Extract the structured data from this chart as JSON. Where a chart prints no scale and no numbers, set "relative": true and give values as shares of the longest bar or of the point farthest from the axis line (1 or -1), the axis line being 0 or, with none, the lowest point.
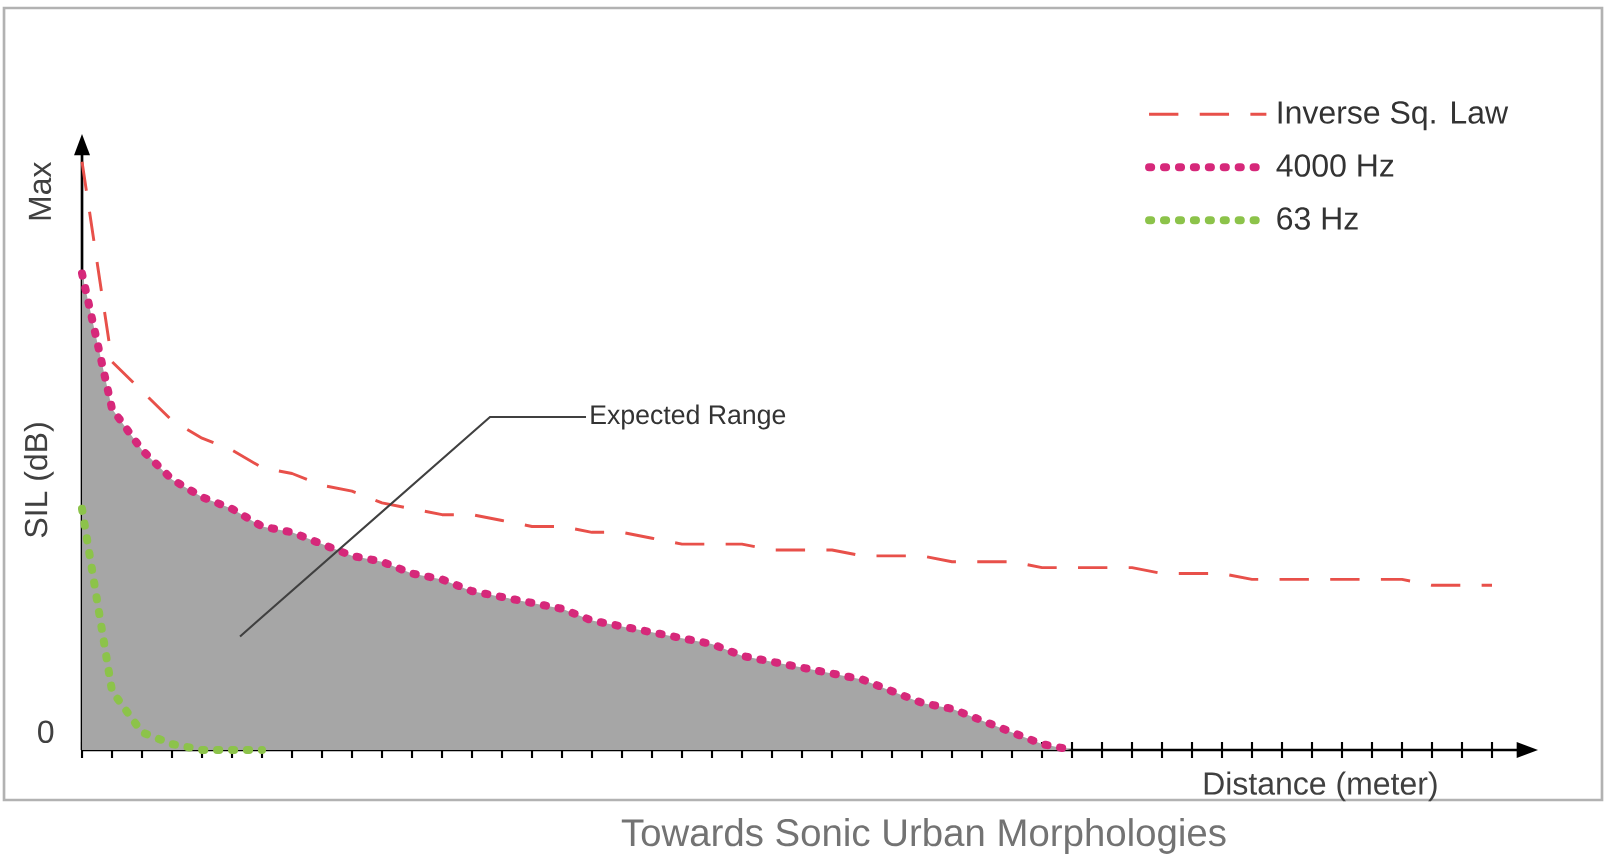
{
  "chart_data": {
    "type": "line",
    "relative": true,
    "ylabel": "SIL (dB)",
    "xlabel": "Distance (meter)",
    "categories": [
      null,
      null,
      null,
      null,
      null,
      null,
      null,
      null,
      null,
      null,
      null,
      null,
      null,
      null,
      null,
      null,
      null,
      null,
      null,
      null,
      null,
      null,
      null,
      null,
      null,
      null,
      null,
      null,
      null,
      null,
      null,
      null,
      null,
      null,
      null,
      null,
      null,
      null,
      null,
      null,
      null,
      null,
      null,
      null,
      null,
      null,
      null,
      null
    ],
    "series": [
      {
        "name": "Inverse Sq. Law",
        "color": "#e8504a",
        "line_style": "dashed",
        "values": [
          1.0,
          0.66,
          0.61,
          0.56,
          0.53,
          0.51,
          0.48,
          0.47,
          0.45,
          0.44,
          0.42,
          0.41,
          0.4,
          0.4,
          0.39,
          0.38,
          0.38,
          0.37,
          0.37,
          0.36,
          0.35,
          0.35,
          0.35,
          0.34,
          0.34,
          0.34,
          0.33,
          0.33,
          0.33,
          0.32,
          0.32,
          0.32,
          0.31,
          0.31,
          0.31,
          0.31,
          0.3,
          0.3,
          0.3,
          0.29,
          0.29,
          0.29,
          0.29,
          0.29,
          0.29,
          0.28,
          0.28,
          0.28
        ]
      },
      {
        "name": "4000 Hz",
        "color": "#d6287a",
        "line_style": "dotted",
        "values": [
          0.81,
          0.58,
          0.51,
          0.46,
          0.43,
          0.41,
          0.38,
          0.37,
          0.35,
          0.33,
          0.32,
          0.3,
          0.29,
          0.27,
          0.26,
          0.25,
          0.24,
          0.22,
          0.21,
          0.2,
          0.19,
          0.18,
          0.16,
          0.15,
          0.14,
          0.13,
          0.12,
          0.1,
          0.08,
          0.07,
          0.05,
          0.03,
          0.01,
          0,
          null,
          null,
          null,
          null,
          null,
          null,
          null,
          null,
          null,
          null,
          null,
          null,
          null,
          null
        ],
        "lower": [
          0,
          0,
          0,
          0,
          0,
          0,
          0,
          0,
          0,
          0,
          0,
          0,
          0,
          0,
          0,
          0,
          0,
          0,
          0,
          0,
          0,
          0,
          0,
          0,
          0,
          0,
          0,
          0,
          0,
          0,
          0,
          0,
          0,
          0,
          null,
          null,
          null,
          null,
          null,
          null,
          null,
          null,
          null,
          null,
          null,
          null,
          null,
          null
        ],
        "upper": [
          0.81,
          0.58,
          0.51,
          0.46,
          0.43,
          0.41,
          0.38,
          0.37,
          0.35,
          0.33,
          0.32,
          0.3,
          0.29,
          0.27,
          0.26,
          0.25,
          0.24,
          0.22,
          0.21,
          0.2,
          0.19,
          0.18,
          0.16,
          0.15,
          0.14,
          0.13,
          0.12,
          0.1,
          0.08,
          0.07,
          0.05,
          0.03,
          0.01,
          0,
          null,
          null,
          null,
          null,
          null,
          null,
          null,
          null,
          null,
          null,
          null,
          null,
          null,
          null
        ]
      },
      {
        "name": "63 Hz",
        "color": "#8cc34a",
        "line_style": "dotted",
        "values": [
          0.41,
          0.1,
          0.03,
          0.01,
          0,
          0,
          0,
          null,
          null,
          null,
          null,
          null,
          null,
          null,
          null,
          null,
          null,
          null,
          null,
          null,
          null,
          null,
          null,
          null,
          null,
          null,
          null,
          null,
          null,
          null,
          null,
          null,
          null,
          null,
          null,
          null,
          null,
          null,
          null,
          null,
          null,
          null,
          null,
          null,
          null,
          null,
          null,
          null
        ]
      }
    ],
    "legend": "top right",
    "annotations": [
      "Expected Range",
      "0",
      "Max",
      "Towards Sonic Urban Morphologies"
    ]
  }
}
